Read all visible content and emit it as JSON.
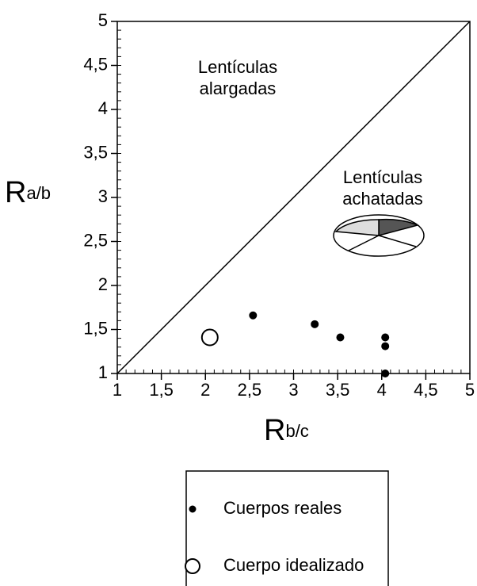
{
  "chart_data": {
    "type": "scatter",
    "xlabel": "R",
    "xlabel_sub": "b/c",
    "ylabel": "R",
    "ylabel_sub": "a/b",
    "xlim": [
      1,
      5
    ],
    "ylim": [
      1,
      5
    ],
    "xticks": [
      1,
      {
        "value": 1.5,
        "label": "1,5"
      },
      2,
      {
        "value": 2.5,
        "label": "2,5"
      },
      3,
      {
        "value": 3.5,
        "label": "3,5"
      },
      4,
      {
        "value": 4.5,
        "label": "4,5"
      },
      5
    ],
    "yticks": [
      1,
      {
        "value": 1.5,
        "label": "1,5"
      },
      2,
      {
        "value": 2.5,
        "label": "2,5"
      },
      3,
      {
        "value": 3.5,
        "label": "3,5"
      },
      4,
      {
        "value": 4.5,
        "label": "4,5"
      },
      5
    ],
    "minor_tick_step": 0.1,
    "series": [
      {
        "name": "Cuerpos reales",
        "marker": "filled",
        "color": "#000000",
        "x": [
          2.54,
          3.24,
          3.53,
          4.04,
          4.04,
          4.04
        ],
        "values": [
          1.66,
          1.56,
          1.41,
          1.41,
          1.31,
          1.0
        ]
      },
      {
        "name": "Cuerpo idealizado",
        "marker": "hollow",
        "color": "#000000",
        "x": [
          2.05
        ],
        "values": [
          1.41
        ]
      }
    ],
    "annotations": [
      {
        "lines": [
          "Lentículas",
          "alargadas"
        ]
      },
      {
        "lines": [
          "Lentículas",
          "achatadas"
        ]
      }
    ]
  }
}
